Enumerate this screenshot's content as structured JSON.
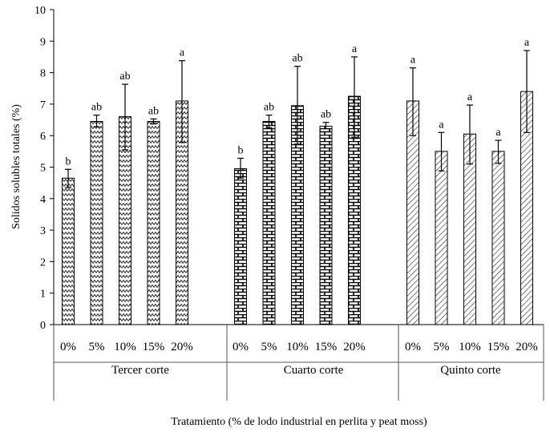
{
  "chart_data": {
    "type": "bar",
    "title": "",
    "xlabel": "Tratamiento (% de lodo industrial en perlita y peat moss)",
    "ylabel": "Solidos solubles totales (%)",
    "ylim": [
      0,
      10
    ],
    "yticks": [
      "0",
      "1",
      "2",
      "3",
      "4",
      "5",
      "6",
      "7",
      "8",
      "9",
      "10"
    ],
    "grid": false,
    "legend": "none",
    "groups": [
      {
        "name": "Tercer corte",
        "pattern": "zigzag",
        "bars": [
          {
            "category": "0%",
            "value": 4.65,
            "error_low": 0.3,
            "error_high": 0.28,
            "letter": "b"
          },
          {
            "category": "5%",
            "value": 6.45,
            "error_low": 0.17,
            "error_high": 0.2,
            "letter": "ab"
          },
          {
            "category": "10%",
            "value": 6.6,
            "error_low": 1.05,
            "error_high": 1.03,
            "letter": "ab"
          },
          {
            "category": "15%",
            "value": 6.45,
            "error_low": 0.08,
            "error_high": 0.08,
            "letter": "ab"
          },
          {
            "category": "20%",
            "value": 7.1,
            "error_low": 1.32,
            "error_high": 1.28,
            "letter": "a"
          }
        ]
      },
      {
        "name": "Cuarto corte",
        "pattern": "brick",
        "bars": [
          {
            "category": "0%",
            "value": 4.95,
            "error_low": 0.3,
            "error_high": 0.33,
            "letter": "b"
          },
          {
            "category": "5%",
            "value": 6.45,
            "error_low": 0.2,
            "error_high": 0.2,
            "letter": "ab"
          },
          {
            "category": "10%",
            "value": 6.95,
            "error_low": 1.22,
            "error_high": 1.25,
            "letter": "ab"
          },
          {
            "category": "15%",
            "value": 6.3,
            "error_low": 0.08,
            "error_high": 0.12,
            "letter": "ab"
          },
          {
            "category": "20%",
            "value": 7.25,
            "error_low": 1.3,
            "error_high": 1.25,
            "letter": "a"
          }
        ]
      },
      {
        "name": "Quinto corte",
        "pattern": "diagonal",
        "bars": [
          {
            "category": "0%",
            "value": 7.1,
            "error_low": 1.1,
            "error_high": 1.05,
            "letter": "a"
          },
          {
            "category": "5%",
            "value": 5.5,
            "error_low": 0.62,
            "error_high": 0.6,
            "letter": "a"
          },
          {
            "category": "10%",
            "value": 6.05,
            "error_low": 0.95,
            "error_high": 0.92,
            "letter": "a"
          },
          {
            "category": "15%",
            "value": 5.5,
            "error_low": 0.38,
            "error_high": 0.35,
            "letter": "a"
          },
          {
            "category": "20%",
            "value": 7.4,
            "error_low": 1.3,
            "error_high": 1.3,
            "letter": "a"
          }
        ]
      }
    ]
  }
}
